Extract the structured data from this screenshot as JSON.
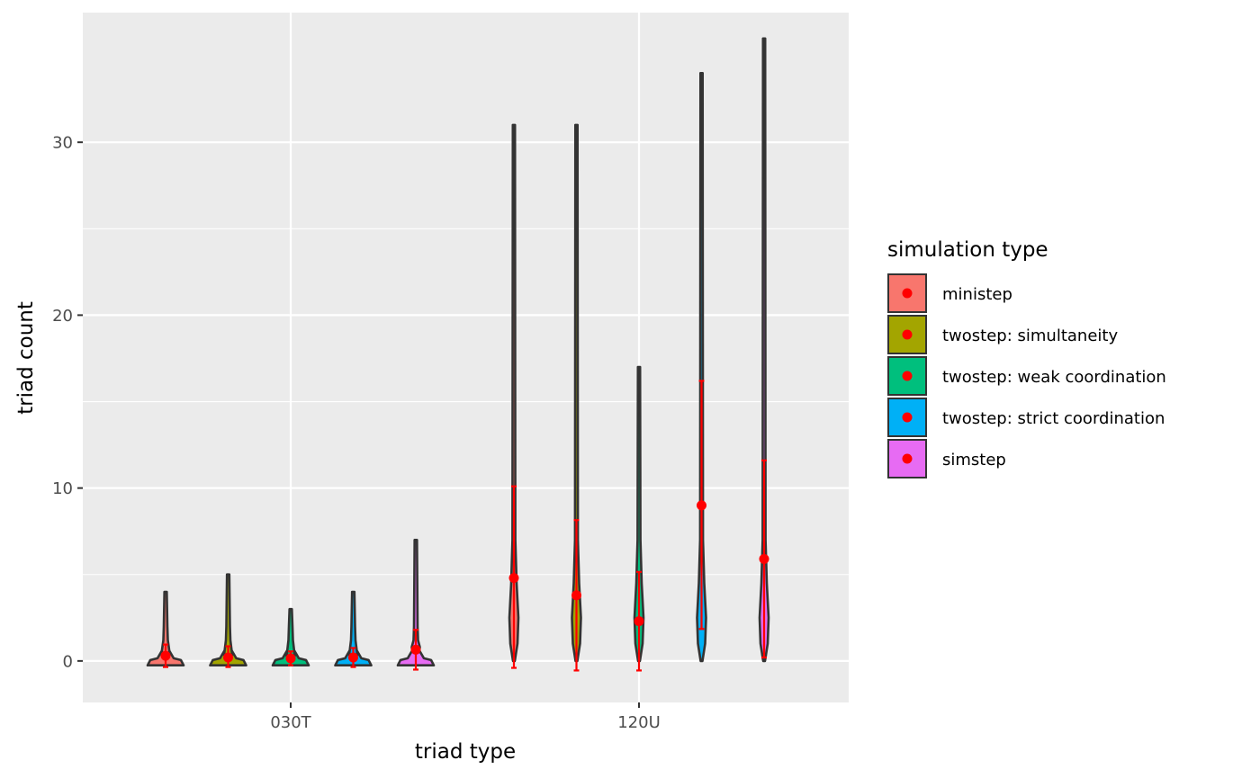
{
  "chart_data": {
    "type": "violin",
    "xlabel": "triad type",
    "ylabel": "triad count",
    "categories": [
      "030T",
      "120U"
    ],
    "ylim": [
      -2.4,
      37.5
    ],
    "yticks": [
      0,
      10,
      20,
      30
    ],
    "grid": true,
    "legend_position": "right",
    "legend_title": "simulation type",
    "series": [
      {
        "name": "ministep",
        "color": "#F8766D",
        "data": [
          {
            "category": "030T",
            "max": 4,
            "mean": 0.3,
            "lower": -0.35,
            "upper": 0.95
          },
          {
            "category": "120U",
            "max": 31,
            "mean": 4.8,
            "lower": -0.4,
            "upper": 10.1
          }
        ]
      },
      {
        "name": "twostep: simultaneity",
        "color": "#A3A500",
        "data": [
          {
            "category": "030T",
            "max": 5,
            "mean": 0.2,
            "lower": -0.35,
            "upper": 0.85
          },
          {
            "category": "120U",
            "max": 31,
            "mean": 3.8,
            "lower": -0.55,
            "upper": 8.15
          }
        ]
      },
      {
        "name": "twostep: weak coordination",
        "color": "#00BF7D",
        "data": [
          {
            "category": "030T",
            "max": 3,
            "mean": 0.15,
            "lower": -0.25,
            "upper": 0.55
          },
          {
            "category": "120U",
            "max": 17,
            "mean": 2.3,
            "lower": -0.55,
            "upper": 5.15
          }
        ]
      },
      {
        "name": "twostep: strict coordination",
        "color": "#00B0F6",
        "data": [
          {
            "category": "030T",
            "max": 4,
            "mean": 0.2,
            "lower": -0.35,
            "upper": 0.75
          },
          {
            "category": "120U",
            "max": 34,
            "mean": 9.0,
            "lower": 1.85,
            "upper": 16.2
          }
        ]
      },
      {
        "name": "simstep",
        "color": "#E76BF3",
        "data": [
          {
            "category": "030T",
            "max": 7,
            "mean": 0.65,
            "lower": -0.5,
            "upper": 1.8
          },
          {
            "category": "120U",
            "max": 36,
            "mean": 5.9,
            "lower": 0.2,
            "upper": 11.6
          }
        ]
      }
    ]
  }
}
